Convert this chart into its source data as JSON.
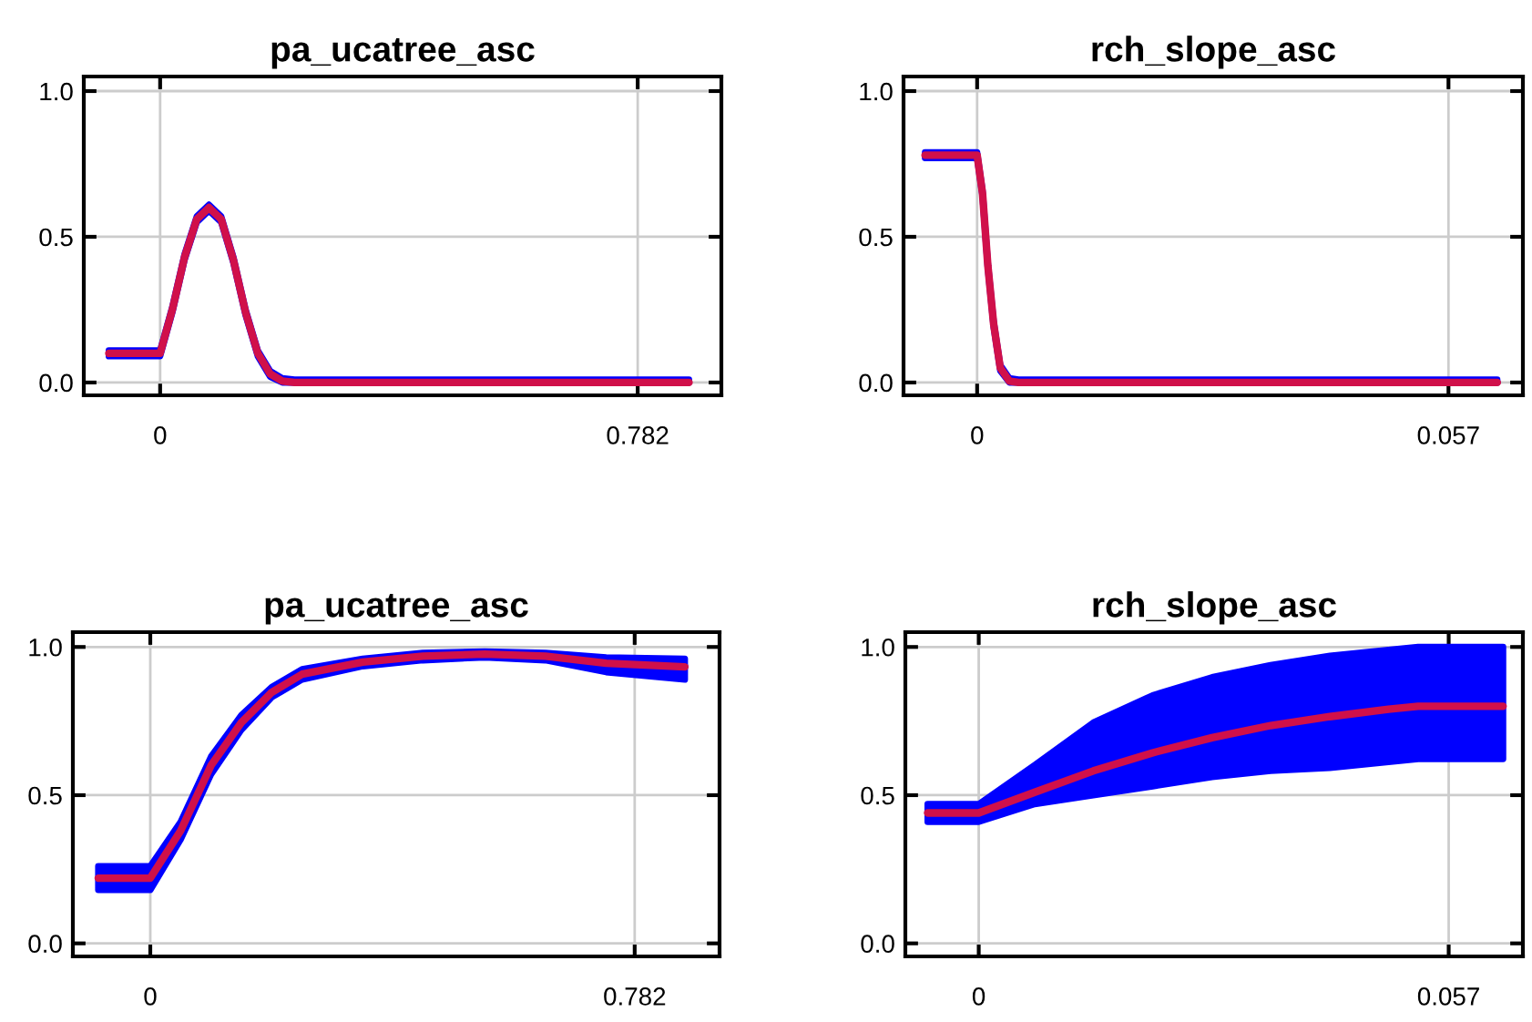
{
  "chart_data": [
    {
      "type": "line",
      "title": "pa_ucatree_asc",
      "xlim": [
        -0.125,
        0.919
      ],
      "xticks": [
        0,
        0.782
      ],
      "ylim": [
        -0.044,
        1.05
      ],
      "yticks": [
        {
          "value": 0,
          "label": "0.0"
        },
        {
          "value": 0.5,
          "label": "0.5"
        },
        {
          "value": 1,
          "label": "1.0"
        }
      ],
      "grid": true,
      "series": [
        {
          "color": "#d0104a",
          "x": [
            -0.084,
            0,
            0.02,
            0.04,
            0.06,
            0.08,
            0.1,
            0.12,
            0.14,
            0.16,
            0.18,
            0.2,
            0.22,
            0.866
          ],
          "values": [
            0.1,
            0.1,
            0.25,
            0.43,
            0.56,
            0.6,
            0.56,
            0.42,
            0.24,
            0.1,
            0.03,
            0.005,
            0,
            0
          ],
          "lower": [
            0.09,
            0.09,
            0.24,
            0.42,
            0.55,
            0.59,
            0.55,
            0.41,
            0.23,
            0.09,
            0.02,
            0,
            0,
            0
          ],
          "upper": [
            0.11,
            0.11,
            0.26,
            0.44,
            0.57,
            0.61,
            0.57,
            0.43,
            0.25,
            0.11,
            0.04,
            0.015,
            0.01,
            0.01
          ]
        }
      ]
    },
    {
      "type": "line",
      "title": "rch_slope_asc",
      "xlim": [
        -0.0089,
        0.066
      ],
      "xticks": [
        0,
        0.057
      ],
      "ylim": [
        -0.044,
        1.05
      ],
      "yticks": [
        {
          "value": 0,
          "label": "0.0"
        },
        {
          "value": 0.5,
          "label": "0.5"
        },
        {
          "value": 1,
          "label": "1.0"
        }
      ],
      "grid": true,
      "series": [
        {
          "color": "#d0104a",
          "x": [
            -0.0063,
            0,
            0.00065,
            0.0013,
            0.002,
            0.0028,
            0.0039,
            0.005,
            0.0629
          ],
          "values": [
            0.78,
            0.78,
            0.65,
            0.4,
            0.2,
            0.05,
            0.005,
            0,
            0
          ],
          "lower": [
            0.77,
            0.77,
            0.64,
            0.39,
            0.19,
            0.04,
            0,
            0,
            0
          ],
          "upper": [
            0.79,
            0.79,
            0.66,
            0.41,
            0.21,
            0.06,
            0.015,
            0.01,
            0.01
          ]
        }
      ]
    },
    {
      "type": "line",
      "title": "pa_ucatree_asc",
      "xlim": [
        -0.125,
        0.919
      ],
      "xticks": [
        0,
        0.782
      ],
      "ylim": [
        -0.044,
        1.05
      ],
      "yticks": [
        {
          "value": 0,
          "label": "0.0"
        },
        {
          "value": 0.5,
          "label": "0.5"
        },
        {
          "value": 1,
          "label": "1.0"
        }
      ],
      "grid": true,
      "series": [
        {
          "color": "#d0104a",
          "x": [
            -0.084,
            0,
            0.049,
            0.098,
            0.147,
            0.196,
            0.245,
            0.343,
            0.44,
            0.54,
            0.638,
            0.736,
            0.863
          ],
          "values": [
            0.22,
            0.22,
            0.38,
            0.6,
            0.745,
            0.847,
            0.908,
            0.949,
            0.969,
            0.976,
            0.969,
            0.945,
            0.933
          ],
          "lower": [
            0.18,
            0.18,
            0.35,
            0.57,
            0.72,
            0.83,
            0.89,
            0.935,
            0.955,
            0.965,
            0.955,
            0.915,
            0.89
          ],
          "upper": [
            0.26,
            0.26,
            0.41,
            0.63,
            0.77,
            0.865,
            0.925,
            0.96,
            0.98,
            0.985,
            0.98,
            0.965,
            0.96
          ]
        }
      ]
    },
    {
      "type": "line",
      "title": "rch_slope_asc",
      "xlim": [
        -0.0089,
        0.066
      ],
      "xticks": [
        0,
        0.057
      ],
      "ylim": [
        -0.044,
        1.05
      ],
      "yticks": [
        {
          "value": 0,
          "label": "0.0"
        },
        {
          "value": 0.5,
          "label": "0.5"
        },
        {
          "value": 1,
          "label": "1.0"
        }
      ],
      "grid": true,
      "series": [
        {
          "color": "#d0104a",
          "x": [
            -0.0062,
            0,
            0.0068,
            0.0139,
            0.0211,
            0.0283,
            0.0354,
            0.0426,
            0.0497,
            0.0533,
            0.0636
          ],
          "values": [
            0.44,
            0.44,
            0.51,
            0.582,
            0.643,
            0.694,
            0.735,
            0.765,
            0.79,
            0.8,
            0.8
          ],
          "lower": [
            0.41,
            0.41,
            0.47,
            0.5,
            0.53,
            0.561,
            0.582,
            0.592,
            0.612,
            0.622,
            0.622
          ],
          "upper": [
            0.47,
            0.47,
            0.602,
            0.745,
            0.837,
            0.898,
            0.939,
            0.97,
            0.99,
            1.0,
            1.0
          ]
        }
      ]
    }
  ]
}
